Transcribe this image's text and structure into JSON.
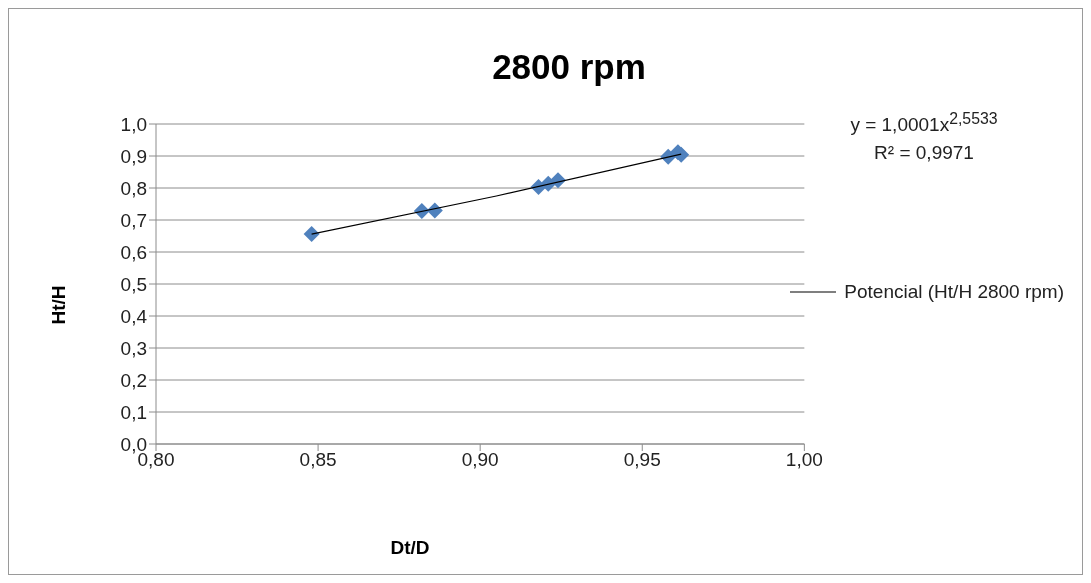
{
  "chart_data": {
    "type": "scatter",
    "title": "2800 rpm",
    "xlabel": "Dt/D",
    "ylabel": "Ht/H",
    "xlim": [
      0.8,
      1.0
    ],
    "xticks": [
      {
        "value": 0.8,
        "label": "0,80"
      },
      {
        "value": 0.85,
        "label": "0,85"
      },
      {
        "value": 0.9,
        "label": "0,90"
      },
      {
        "value": 0.95,
        "label": "0,95"
      },
      {
        "value": 1.0,
        "label": "1,00"
      }
    ],
    "ylim": [
      0,
      1
    ],
    "yticks": [
      {
        "value": 0,
        "label": "0,0"
      },
      {
        "value": 0.1,
        "label": "0,1"
      },
      {
        "value": 0.2,
        "label": "0,2"
      },
      {
        "value": 0.3,
        "label": "0,3"
      },
      {
        "value": 0.4,
        "label": "0,4"
      },
      {
        "value": 0.5,
        "label": "0,5"
      },
      {
        "value": 0.6,
        "label": "0,6"
      },
      {
        "value": 0.7,
        "label": "0,7"
      },
      {
        "value": 0.8,
        "label": "0,8"
      },
      {
        "value": 0.9,
        "label": "0,9"
      },
      {
        "value": 1.0,
        "label": "1,0"
      }
    ],
    "grid": "y",
    "legend": "right",
    "series": [
      {
        "marker": "diamond",
        "color": "#4f81bd",
        "x": [
          0.848,
          0.882,
          0.886,
          0.918,
          0.921,
          0.924,
          0.958,
          0.961,
          0.962
        ],
        "values": [
          0.656,
          0.728,
          0.73,
          0.803,
          0.813,
          0.824,
          0.898,
          0.912,
          0.904
        ]
      },
      {
        "type": "line",
        "marker": "none",
        "name": "Potencial (Ht/H 2800 rpm)",
        "color": "#000000",
        "x": [
          0.848,
          0.905,
          0.962
        ],
        "values": [
          0.656,
          0.775,
          0.906
        ]
      }
    ],
    "annotations": [
      "y = 1,0001x$^{2,5533}$",
      "R² = 0,9971"
    ]
  }
}
